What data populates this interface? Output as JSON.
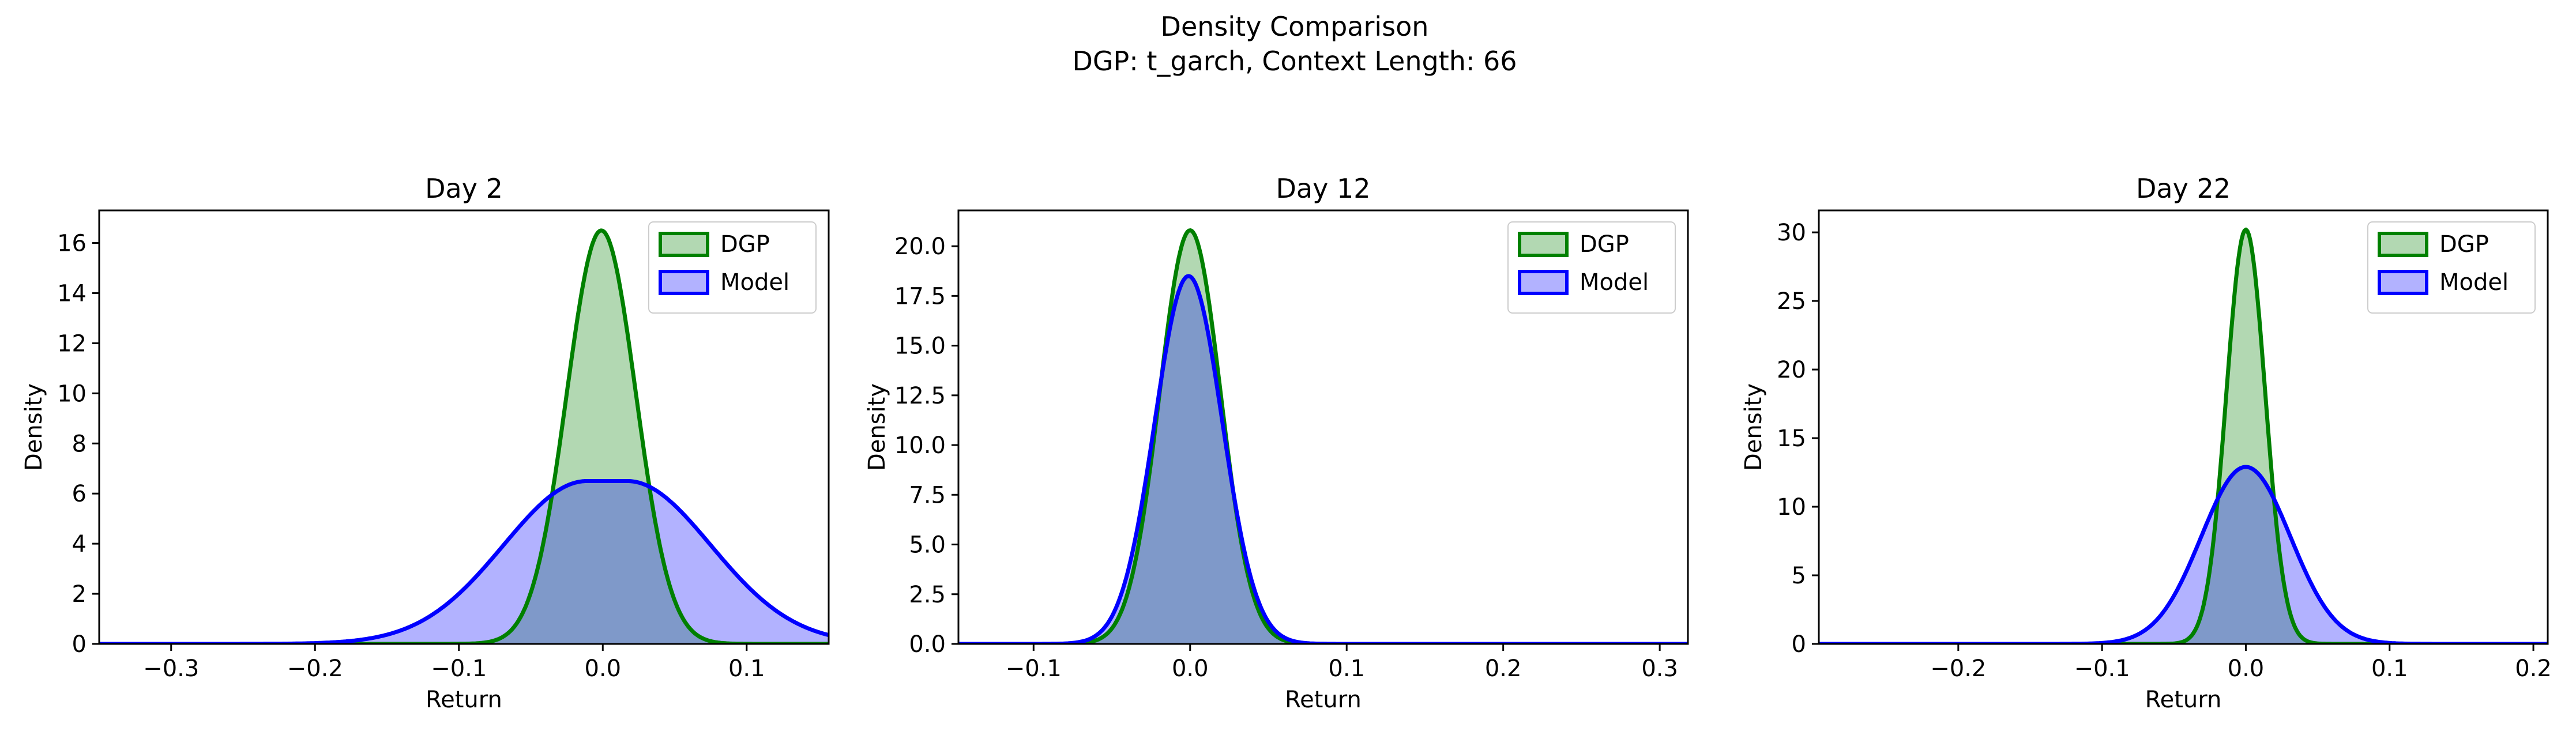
{
  "figure": {
    "title_line1": "Density Comparison",
    "title_line2": "DGP: t_garch, Context Length: 66"
  },
  "colors": {
    "dgp_line": "#008000",
    "dgp_fill": "#b2d8b2",
    "model_line": "#0000ff",
    "model_fill": "#b2b2ff",
    "overlap_fill": "#7f99c9"
  },
  "chart_data": [
    {
      "type": "area",
      "title": "Day 2",
      "xlabel": "Return",
      "ylabel": "Density",
      "xlim": [
        -0.35,
        0.157
      ],
      "ylim": [
        0,
        17.3
      ],
      "xticks": [
        -0.3,
        -0.2,
        -0.1,
        0.0,
        0.1
      ],
      "xtick_labels": [
        "−0.3",
        "−0.2",
        "−0.1",
        "0.0",
        "0.1"
      ],
      "yticks": [
        0,
        2,
        4,
        6,
        8,
        10,
        12,
        14,
        16
      ],
      "ytick_labels": [
        "0",
        "2",
        "4",
        "6",
        "8",
        "10",
        "12",
        "14",
        "16"
      ],
      "legend": {
        "placement": "top-right",
        "entries": [
          "DGP",
          "Model"
        ]
      },
      "series": [
        {
          "name": "DGP",
          "kind": "normal",
          "mu": -0.001,
          "sd": 0.024,
          "peak": 16.5
        },
        {
          "name": "Model",
          "kind": "flat",
          "mu": 0.003,
          "sd": 0.058,
          "peak": 6.5,
          "flat": 0.014
        }
      ]
    },
    {
      "type": "area",
      "title": "Day 12",
      "xlabel": "Return",
      "ylabel": "Density",
      "xlim": [
        -0.148,
        0.318
      ],
      "ylim": [
        0,
        21.8
      ],
      "xticks": [
        -0.1,
        0.0,
        0.1,
        0.2,
        0.3
      ],
      "xtick_labels": [
        "−0.1",
        "0.0",
        "0.1",
        "0.2",
        "0.3"
      ],
      "yticks": [
        0,
        2.5,
        5,
        7.5,
        10,
        12.5,
        15,
        17.5,
        20
      ],
      "ytick_labels": [
        "0.0",
        "2.5",
        "5.0",
        "7.5",
        "10.0",
        "12.5",
        "15.0",
        "17.5",
        "20.0"
      ],
      "legend": {
        "placement": "top-right",
        "entries": [
          "DGP",
          "Model"
        ]
      },
      "series": [
        {
          "name": "DGP",
          "kind": "normal",
          "mu": 0.0,
          "sd": 0.0195,
          "peak": 20.8
        },
        {
          "name": "Model",
          "kind": "normal",
          "mu": -0.001,
          "sd": 0.0215,
          "peak": 18.5
        }
      ]
    },
    {
      "type": "area",
      "title": "Day 22",
      "xlabel": "Return",
      "ylabel": "Density",
      "xlim": [
        -0.297,
        0.21
      ],
      "ylim": [
        0,
        31.6
      ],
      "xticks": [
        -0.2,
        -0.1,
        0.0,
        0.1,
        0.2
      ],
      "xtick_labels": [
        "−0.2",
        "−0.1",
        "0.0",
        "0.1",
        "0.2"
      ],
      "yticks": [
        0,
        5,
        10,
        15,
        20,
        25,
        30
      ],
      "ytick_labels": [
        "0",
        "5",
        "10",
        "15",
        "20",
        "25",
        "30"
      ],
      "legend": {
        "placement": "top-right",
        "entries": [
          "DGP",
          "Model"
        ]
      },
      "series": [
        {
          "name": "DGP",
          "kind": "normal",
          "mu": 0.0,
          "sd": 0.0135,
          "peak": 30.2
        },
        {
          "name": "Model",
          "kind": "normal",
          "mu": 0.0,
          "sd": 0.031,
          "peak": 12.9
        }
      ]
    }
  ]
}
